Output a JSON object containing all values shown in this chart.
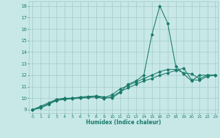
{
  "xlabel": "Humidex (Indice chaleur)",
  "bg_color": "#c8e8e8",
  "line_color": "#1a7a6a",
  "grid_color": "#a0c8c8",
  "xlim": [
    -0.5,
    23.3
  ],
  "ylim": [
    8.7,
    18.4
  ],
  "xticks": [
    0,
    1,
    2,
    3,
    4,
    5,
    6,
    7,
    8,
    9,
    10,
    11,
    12,
    13,
    14,
    15,
    16,
    17,
    18,
    19,
    20,
    21,
    22,
    23
  ],
  "yticks": [
    9,
    10,
    11,
    12,
    13,
    14,
    15,
    16,
    17,
    18
  ],
  "line1_x": [
    0,
    1,
    2,
    3,
    4,
    5,
    6,
    7,
    8,
    9,
    10,
    11,
    12,
    13,
    14,
    15,
    16,
    17,
    18,
    19,
    20,
    21,
    22,
    23
  ],
  "line1_y": [
    9.0,
    9.3,
    9.6,
    9.9,
    10.0,
    10.0,
    10.1,
    10.15,
    10.2,
    10.1,
    10.0,
    10.5,
    11.2,
    11.5,
    12.0,
    15.5,
    18.0,
    16.5,
    12.8,
    12.1,
    11.5,
    12.0,
    12.0,
    12.0
  ],
  "line2_x": [
    0,
    1,
    2,
    3,
    4,
    5,
    6,
    7,
    8,
    9,
    10,
    11,
    12,
    13,
    14,
    15,
    16,
    17,
    18,
    19,
    20,
    21,
    22,
    23
  ],
  "line2_y": [
    9.0,
    9.2,
    9.5,
    9.85,
    9.95,
    10.0,
    10.05,
    10.1,
    10.15,
    10.05,
    10.3,
    10.8,
    11.1,
    11.4,
    11.7,
    12.0,
    12.3,
    12.5,
    12.5,
    12.2,
    12.1,
    11.7,
    12.0,
    12.0
  ],
  "line3_x": [
    0,
    1,
    2,
    3,
    4,
    5,
    6,
    7,
    8,
    9,
    10,
    11,
    12,
    13,
    14,
    15,
    16,
    17,
    18,
    19,
    20,
    21,
    22,
    23
  ],
  "line3_y": [
    9.0,
    9.15,
    9.45,
    9.8,
    9.9,
    9.95,
    10.0,
    10.05,
    10.1,
    9.95,
    10.15,
    10.55,
    10.9,
    11.2,
    11.5,
    11.7,
    12.0,
    12.2,
    12.4,
    12.6,
    11.6,
    11.55,
    11.9,
    12.0
  ]
}
